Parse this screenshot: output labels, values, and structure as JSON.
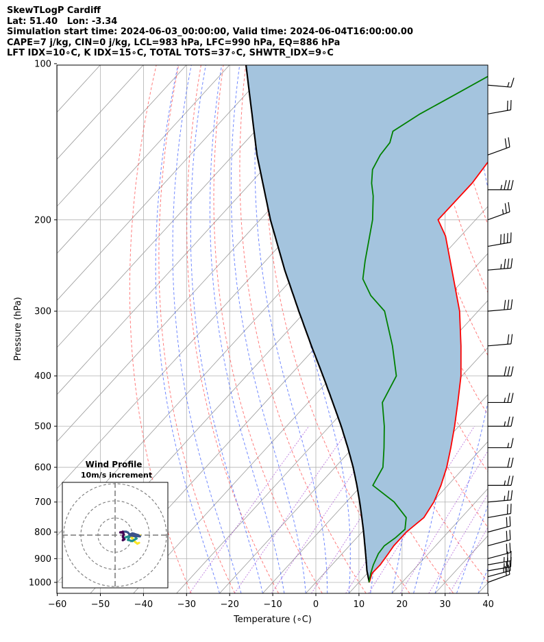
{
  "header": {
    "lines": [
      "SkewTLogP Cardiff",
      "Lat: 51.40   Lon: -3.34",
      "Simulation start time: 2024-06-03_00:00:00, Valid time: 2024-06-04T16:00:00.00",
      "CAPE=7 j/kg, CIN=0 j/kg, LCL=983 hPa, LFC=990 hPa, EQ=886 hPa",
      "LFT IDX=10∘C, K IDX=15∘C, TOTAL TOTS=37∘C, SHWTR_IDX=9∘C"
    ]
  },
  "chart_data": {
    "type": "skewt",
    "xlabel": "Temperature (∘C)",
    "ylabel": "Pressure (hPa)",
    "xlim": [
      -60,
      40
    ],
    "ylim": [
      1050,
      100
    ],
    "x_ticks": [
      -60,
      -50,
      -40,
      -30,
      -20,
      -10,
      0,
      10,
      20,
      30,
      40
    ],
    "x_tick_labels": [
      "−60",
      "−50",
      "−40",
      "−30",
      "−20",
      "−10",
      "0",
      "10",
      "20",
      "30",
      "40"
    ],
    "y_ticks": [
      1000,
      900,
      800,
      700,
      600,
      500,
      400,
      300,
      200,
      100
    ],
    "y_tick_labels": [
      "1000",
      "900",
      "800",
      "700",
      "600",
      "500",
      "400",
      "300",
      "200",
      "100"
    ],
    "grid": true,
    "colors": {
      "temperature": "#ff0000",
      "dewpoint": "#008000",
      "parcel": "#000000",
      "cape": "#a4c4de",
      "dry_adiabats": "#ff4444",
      "moist_adiabats": "#3355ff",
      "mixing_ratio": "#9933cc",
      "isotherms": "#999999"
    },
    "temperature_profile": [
      {
        "p": 1000,
        "t": 12.4
      },
      {
        "p": 960,
        "t": 11.1
      },
      {
        "p": 925,
        "t": 11.2
      },
      {
        "p": 880,
        "t": 10.7
      },
      {
        "p": 850,
        "t": 10.3
      },
      {
        "p": 800,
        "t": 10.3
      },
      {
        "p": 750,
        "t": 11.3
      },
      {
        "p": 700,
        "t": 10.3
      },
      {
        "p": 650,
        "t": 8.4
      },
      {
        "p": 600,
        "t": 5.9
      },
      {
        "p": 550,
        "t": 2.7
      },
      {
        "p": 500,
        "t": -1.0
      },
      {
        "p": 450,
        "t": -5.3
      },
      {
        "p": 400,
        "t": -10.2
      },
      {
        "p": 350,
        "t": -16.6
      },
      {
        "p": 300,
        "t": -24.3
      },
      {
        "p": 250,
        "t": -34.8
      },
      {
        "p": 215,
        "t": -43.5
      },
      {
        "p": 200,
        "t": -48.7
      },
      {
        "p": 170,
        "t": -48.6
      },
      {
        "p": 155,
        "t": -49.4
      },
      {
        "p": 148,
        "t": -43.9
      },
      {
        "p": 140,
        "t": -35.4
      },
      {
        "p": 135,
        "t": -26.3
      },
      {
        "p": 125,
        "t": -24.2
      },
      {
        "p": 118,
        "t": -19.8
      },
      {
        "p": 110,
        "t": -18.2
      },
      {
        "p": 100,
        "t": -17.0
      }
    ],
    "dewpoint_profile": [
      {
        "p": 1000,
        "t": 12.3
      },
      {
        "p": 960,
        "t": 10.8
      },
      {
        "p": 925,
        "t": 9.6
      },
      {
        "p": 880,
        "t": 8.4
      },
      {
        "p": 850,
        "t": 8.1
      },
      {
        "p": 820,
        "t": 9.0
      },
      {
        "p": 790,
        "t": 9.4
      },
      {
        "p": 750,
        "t": 7.2
      },
      {
        "p": 700,
        "t": 1.1
      },
      {
        "p": 650,
        "t": -7.4
      },
      {
        "p": 600,
        "t": -8.9
      },
      {
        "p": 550,
        "t": -12.8
      },
      {
        "p": 500,
        "t": -17.3
      },
      {
        "p": 450,
        "t": -22.8
      },
      {
        "p": 400,
        "t": -25.2
      },
      {
        "p": 350,
        "t": -32.5
      },
      {
        "p": 300,
        "t": -41.7
      },
      {
        "p": 280,
        "t": -48.2
      },
      {
        "p": 260,
        "t": -53.6
      },
      {
        "p": 240,
        "t": -56.9
      },
      {
        "p": 200,
        "t": -63.9
      },
      {
        "p": 180,
        "t": -68.8
      },
      {
        "p": 170,
        "t": -71.9
      },
      {
        "p": 160,
        "t": -74.6
      },
      {
        "p": 150,
        "t": -75.9
      },
      {
        "p": 142,
        "t": -76.3
      },
      {
        "p": 135,
        "t": -78.0
      },
      {
        "p": 125,
        "t": -75.4
      },
      {
        "p": 115,
        "t": -71.5
      },
      {
        "p": 100,
        "t": -65.0
      }
    ],
    "parcel_profile": [
      {
        "p": 1000,
        "t": 12.4
      },
      {
        "p": 950,
        "t": 9.4
      },
      {
        "p": 900,
        "t": 6.6
      },
      {
        "p": 850,
        "t": 3.6
      },
      {
        "p": 800,
        "t": 0.4
      },
      {
        "p": 750,
        "t": -3.1
      },
      {
        "p": 700,
        "t": -6.9
      },
      {
        "p": 650,
        "t": -11.1
      },
      {
        "p": 600,
        "t": -15.8
      },
      {
        "p": 550,
        "t": -21.2
      },
      {
        "p": 500,
        "t": -27.3
      },
      {
        "p": 450,
        "t": -34.3
      },
      {
        "p": 400,
        "t": -42.2
      },
      {
        "p": 350,
        "t": -51.3
      },
      {
        "p": 300,
        "t": -61.6
      },
      {
        "p": 250,
        "t": -73.6
      },
      {
        "p": 200,
        "t": -87.6
      },
      {
        "p": 150,
        "t": -104.5
      },
      {
        "p": 100,
        "t": -126.5
      }
    ],
    "wind_barbs": [
      {
        "p": 1000,
        "speed_kt": 20,
        "dir_deg": 250
      },
      {
        "p": 975,
        "speed_kt": 25,
        "dir_deg": 255
      },
      {
        "p": 950,
        "speed_kt": 25,
        "dir_deg": 260
      },
      {
        "p": 925,
        "speed_kt": 25,
        "dir_deg": 260
      },
      {
        "p": 900,
        "speed_kt": 20,
        "dir_deg": 255
      },
      {
        "p": 850,
        "speed_kt": 20,
        "dir_deg": 255
      },
      {
        "p": 800,
        "speed_kt": 20,
        "dir_deg": 255
      },
      {
        "p": 750,
        "speed_kt": 20,
        "dir_deg": 260
      },
      {
        "p": 700,
        "speed_kt": 25,
        "dir_deg": 265
      },
      {
        "p": 650,
        "speed_kt": 25,
        "dir_deg": 270
      },
      {
        "p": 600,
        "speed_kt": 20,
        "dir_deg": 270
      },
      {
        "p": 550,
        "speed_kt": 15,
        "dir_deg": 270
      },
      {
        "p": 500,
        "speed_kt": 25,
        "dir_deg": 270
      },
      {
        "p": 450,
        "speed_kt": 25,
        "dir_deg": 270
      },
      {
        "p": 400,
        "speed_kt": 30,
        "dir_deg": 270
      },
      {
        "p": 350,
        "speed_kt": 20,
        "dir_deg": 265
      },
      {
        "p": 300,
        "speed_kt": 30,
        "dir_deg": 265
      },
      {
        "p": 250,
        "speed_kt": 35,
        "dir_deg": 265
      },
      {
        "p": 225,
        "speed_kt": 40,
        "dir_deg": 260
      },
      {
        "p": 200,
        "speed_kt": 25,
        "dir_deg": 250
      },
      {
        "p": 175,
        "speed_kt": 35,
        "dir_deg": 270
      },
      {
        "p": 150,
        "speed_kt": 20,
        "dir_deg": 250
      },
      {
        "p": 125,
        "speed_kt": 20,
        "dir_deg": 260
      },
      {
        "p": 110,
        "speed_kt": 15,
        "dir_deg": 275
      }
    ],
    "hodograph": {
      "title": "Wind Profile",
      "subtitle": "10m/s increment",
      "rings_ms": [
        10,
        20,
        30
      ],
      "points": [
        {
          "u": 14.0,
          "v": -4.5
        },
        {
          "u": 13.0,
          "v": -5.0
        },
        {
          "u": 11.5,
          "v": -3.8
        },
        {
          "u": 10.5,
          "v": -2.5
        },
        {
          "u": 9.5,
          "v": -1.2
        },
        {
          "u": 10.0,
          "v": -0.2
        },
        {
          "u": 12.0,
          "v": 0.0
        },
        {
          "u": 14.5,
          "v": -0.2
        },
        {
          "u": 11.0,
          "v": -0.6
        },
        {
          "u": 8.0,
          "v": -0.8
        },
        {
          "u": 5.5,
          "v": -1.5
        },
        {
          "u": 7.0,
          "v": -1.0
        },
        {
          "u": 9.0,
          "v": -0.3
        },
        {
          "u": 11.5,
          "v": -0.4
        },
        {
          "u": 12.5,
          "v": -2.0
        },
        {
          "u": 10.0,
          "v": -3.5
        },
        {
          "u": 7.5,
          "v": -2.8
        },
        {
          "u": 9.0,
          "v": 0.5
        },
        {
          "u": 10.0,
          "v": 1.0
        },
        {
          "u": 11.0,
          "v": 0.8
        },
        {
          "u": 13.5,
          "v": 0.0
        },
        {
          "u": 14.5,
          "v": -0.7
        },
        {
          "u": 11.0,
          "v": -0.5
        },
        {
          "u": 9.0,
          "v": -0.2
        },
        {
          "u": 7.5,
          "v": 1.5
        },
        {
          "u": 6.5,
          "v": 2.0
        },
        {
          "u": 4.5,
          "v": 2.0
        },
        {
          "u": 4.0,
          "v": 1.5
        },
        {
          "u": 3.0,
          "v": 1.6
        },
        {
          "u": 4.5,
          "v": 1.8
        },
        {
          "u": 5.0,
          "v": 0.5
        },
        {
          "u": 4.5,
          "v": -1.0
        },
        {
          "u": 5.0,
          "v": -2.0
        },
        {
          "u": 4.5,
          "v": -3.0
        },
        {
          "u": 5.5,
          "v": -2.5
        }
      ],
      "colormap": [
        "#fde725",
        "#5ec962",
        "#21918c",
        "#3b528b",
        "#440154"
      ]
    }
  }
}
